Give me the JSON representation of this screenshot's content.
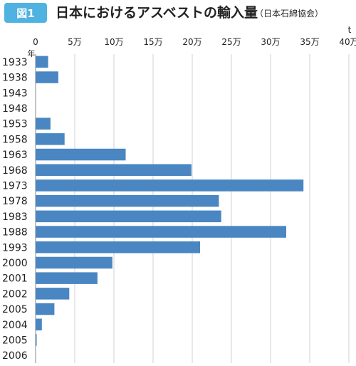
{
  "figure": {
    "badge": "図1",
    "title": "日本におけるアスベストの輸入量",
    "source": "（日本石綿協会）"
  },
  "colors": {
    "bar": "#4a86c2",
    "badge": "#4fb2e0",
    "grid": "#d0d0d0",
    "axis": "#888888"
  },
  "chart_data": {
    "type": "bar",
    "orientation": "horizontal",
    "title": "日本におけるアスベストの輸入量",
    "xlabel_unit": "t",
    "ylabel_unit": "年",
    "xlim": [
      0,
      400000
    ],
    "x_ticks": [
      {
        "value": 0,
        "label": "0"
      },
      {
        "value": 50000,
        "label": "5万"
      },
      {
        "value": 100000,
        "label": "10万"
      },
      {
        "value": 150000,
        "label": "15万"
      },
      {
        "value": 200000,
        "label": "20万"
      },
      {
        "value": 250000,
        "label": "25万"
      },
      {
        "value": 300000,
        "label": "30万"
      },
      {
        "value": 350000,
        "label": "35万"
      },
      {
        "value": 400000,
        "label": "40万"
      }
    ],
    "grid": true,
    "legend": "none",
    "categories": [
      "1933",
      "1938",
      "1943",
      "1948",
      "1953",
      "1958",
      "1963",
      "1968",
      "1973",
      "1978",
      "1983",
      "1988",
      "1993",
      "2000",
      "2001",
      "2002",
      "2005",
      "2004",
      "2005",
      "2006"
    ],
    "values": [
      16000,
      29000,
      0,
      0,
      19000,
      37000,
      115000,
      199000,
      342000,
      234000,
      237000,
      320000,
      210000,
      98000,
      79000,
      43000,
      24000,
      8000,
      1000,
      0
    ]
  }
}
